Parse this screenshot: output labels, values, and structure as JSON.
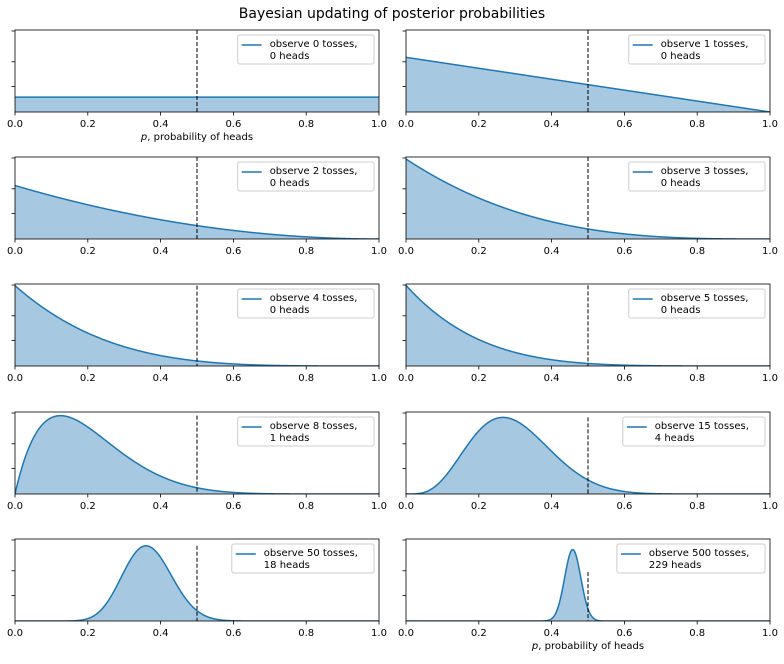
{
  "title": "Bayesian updating of posterior probabilities",
  "colors": {
    "line": "#1f77b4",
    "fill": "#a6c8e0"
  },
  "chart_data": [
    {
      "type": "area",
      "n_tosses": 0,
      "n_heads": 0,
      "legend": [
        "observe 0 tosses,",
        " 0 heads"
      ],
      "xlabel": "p, probability of heads",
      "ylim": [
        0,
        5.5
      ]
    },
    {
      "type": "area",
      "n_tosses": 1,
      "n_heads": 0,
      "legend": [
        "observe 1 tosses,",
        " 0 heads"
      ],
      "xlabel": "",
      "ylim": [
        0,
        3
      ]
    },
    {
      "type": "area",
      "n_tosses": 2,
      "n_heads": 0,
      "legend": [
        "observe 2 tosses,",
        " 0 heads"
      ],
      "xlabel": "",
      "ylim": [
        0,
        4.6
      ]
    },
    {
      "type": "area",
      "n_tosses": 3,
      "n_heads": 0,
      "legend": [
        "observe 3 tosses,",
        " 0 heads"
      ],
      "xlabel": "",
      "ylim": [
        0,
        4.1
      ]
    },
    {
      "type": "area",
      "n_tosses": 4,
      "n_heads": 0,
      "legend": [
        "observe 4 tosses,",
        " 0 heads"
      ],
      "xlabel": "",
      "ylim": [
        0,
        5.1
      ]
    },
    {
      "type": "area",
      "n_tosses": 5,
      "n_heads": 0,
      "legend": [
        "observe 5 tosses,",
        " 0 heads"
      ],
      "xlabel": "",
      "ylim": [
        0,
        6.1
      ]
    },
    {
      "type": "area",
      "n_tosses": 8,
      "n_heads": 1,
      "legend": [
        "observe 8 tosses,",
        " 1 heads"
      ],
      "xlabel": "",
      "ylim": [
        0,
        3.7
      ]
    },
    {
      "type": "area",
      "n_tosses": 15,
      "n_heads": 4,
      "legend": [
        "observe 15 tosses,",
        " 4 heads"
      ],
      "xlabel": "",
      "ylim": [
        0,
        3.9
      ]
    },
    {
      "type": "area",
      "n_tosses": 50,
      "n_heads": 18,
      "legend": [
        "observe 50 tosses,",
        " 18 heads"
      ],
      "xlabel": "",
      "ylim": [
        0,
        6.5
      ]
    },
    {
      "type": "area",
      "n_tosses": 500,
      "n_heads": 229,
      "legend": [
        "observe 500 tosses,",
        " 229 heads"
      ],
      "xlabel": "p, probability of heads",
      "ylim": [
        0,
        20.6
      ]
    }
  ],
  "x_ticks": [
    "0.0",
    "0.2",
    "0.4",
    "0.6",
    "0.8",
    "1.0"
  ],
  "xlim": [
    0,
    1
  ],
  "vline_x": 0.5
}
